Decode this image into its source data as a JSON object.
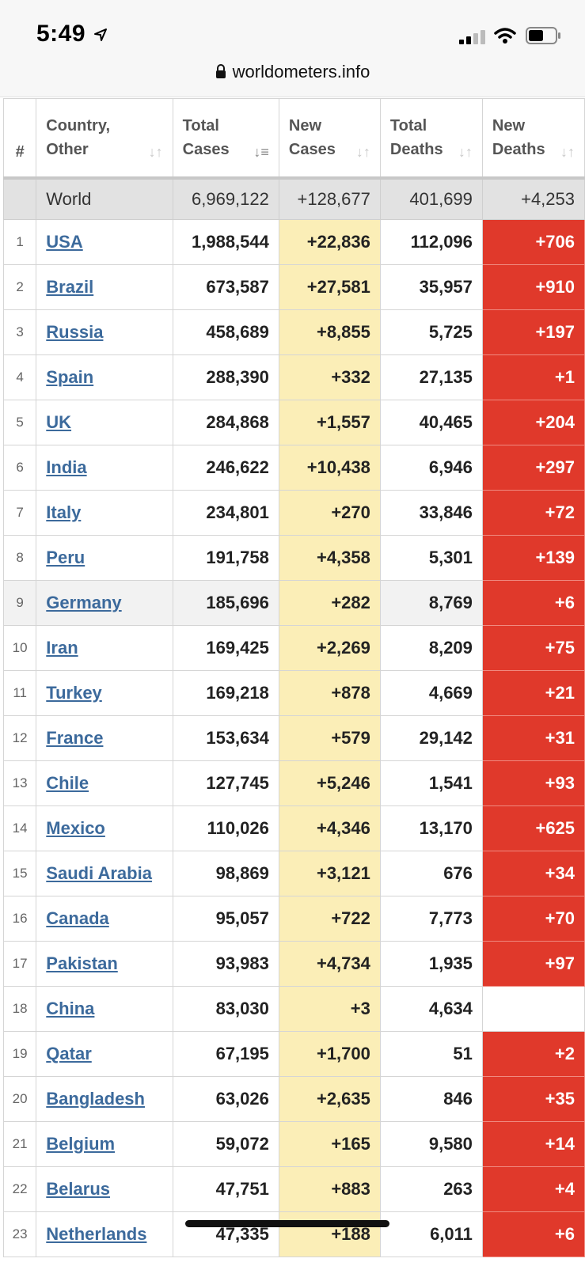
{
  "status_bar": {
    "time": "5:49",
    "icons": [
      "location-arrow-icon",
      "cellular-signal-icon",
      "wifi-icon",
      "battery-icon"
    ]
  },
  "browser": {
    "url": "worldometers.info",
    "lock_icon": "lock-icon"
  },
  "table": {
    "headers": {
      "rank": "#",
      "country_line1": "Country,",
      "country_line2": "Other",
      "total_cases_line1": "Total",
      "total_cases_line2": "Cases",
      "new_cases_line1": "New",
      "new_cases_line2": "Cases",
      "total_deaths_line1": "Total",
      "total_deaths_line2": "Deaths",
      "new_deaths_line1": "New",
      "new_deaths_line2": "Deaths"
    },
    "world": {
      "country": "World",
      "total_cases": "6,969,122",
      "new_cases": "+128,677",
      "total_deaths": "401,699",
      "new_deaths": "+4,253"
    },
    "rows": [
      {
        "rank": "1",
        "country": "USA",
        "total_cases": "1,988,544",
        "new_cases": "+22,836",
        "total_deaths": "112,096",
        "new_deaths": "+706"
      },
      {
        "rank": "2",
        "country": "Brazil",
        "total_cases": "673,587",
        "new_cases": "+27,581",
        "total_deaths": "35,957",
        "new_deaths": "+910"
      },
      {
        "rank": "3",
        "country": "Russia",
        "total_cases": "458,689",
        "new_cases": "+8,855",
        "total_deaths": "5,725",
        "new_deaths": "+197"
      },
      {
        "rank": "4",
        "country": "Spain",
        "total_cases": "288,390",
        "new_cases": "+332",
        "total_deaths": "27,135",
        "new_deaths": "+1"
      },
      {
        "rank": "5",
        "country": "UK",
        "total_cases": "284,868",
        "new_cases": "+1,557",
        "total_deaths": "40,465",
        "new_deaths": "+204"
      },
      {
        "rank": "6",
        "country": "India",
        "total_cases": "246,622",
        "new_cases": "+10,438",
        "total_deaths": "6,946",
        "new_deaths": "+297"
      },
      {
        "rank": "7",
        "country": "Italy",
        "total_cases": "234,801",
        "new_cases": "+270",
        "total_deaths": "33,846",
        "new_deaths": "+72"
      },
      {
        "rank": "8",
        "country": "Peru",
        "total_cases": "191,758",
        "new_cases": "+4,358",
        "total_deaths": "5,301",
        "new_deaths": "+139"
      },
      {
        "rank": "9",
        "country": "Germany",
        "total_cases": "185,696",
        "new_cases": "+282",
        "total_deaths": "8,769",
        "new_deaths": "+6",
        "highlight": true
      },
      {
        "rank": "10",
        "country": "Iran",
        "total_cases": "169,425",
        "new_cases": "+2,269",
        "total_deaths": "8,209",
        "new_deaths": "+75"
      },
      {
        "rank": "11",
        "country": "Turkey",
        "total_cases": "169,218",
        "new_cases": "+878",
        "total_deaths": "4,669",
        "new_deaths": "+21"
      },
      {
        "rank": "12",
        "country": "France",
        "total_cases": "153,634",
        "new_cases": "+579",
        "total_deaths": "29,142",
        "new_deaths": "+31"
      },
      {
        "rank": "13",
        "country": "Chile",
        "total_cases": "127,745",
        "new_cases": "+5,246",
        "total_deaths": "1,541",
        "new_deaths": "+93"
      },
      {
        "rank": "14",
        "country": "Mexico",
        "total_cases": "110,026",
        "new_cases": "+4,346",
        "total_deaths": "13,170",
        "new_deaths": "+625"
      },
      {
        "rank": "15",
        "country": "Saudi Arabia",
        "total_cases": "98,869",
        "new_cases": "+3,121",
        "total_deaths": "676",
        "new_deaths": "+34"
      },
      {
        "rank": "16",
        "country": "Canada",
        "total_cases": "95,057",
        "new_cases": "+722",
        "total_deaths": "7,773",
        "new_deaths": "+70"
      },
      {
        "rank": "17",
        "country": "Pakistan",
        "total_cases": "93,983",
        "new_cases": "+4,734",
        "total_deaths": "1,935",
        "new_deaths": "+97"
      },
      {
        "rank": "18",
        "country": "China",
        "total_cases": "83,030",
        "new_cases": "+3",
        "total_deaths": "4,634",
        "new_deaths": ""
      },
      {
        "rank": "19",
        "country": "Qatar",
        "total_cases": "67,195",
        "new_cases": "+1,700",
        "total_deaths": "51",
        "new_deaths": "+2"
      },
      {
        "rank": "20",
        "country": "Bangladesh",
        "total_cases": "63,026",
        "new_cases": "+2,635",
        "total_deaths": "846",
        "new_deaths": "+35"
      },
      {
        "rank": "21",
        "country": "Belgium",
        "total_cases": "59,072",
        "new_cases": "+165",
        "total_deaths": "9,580",
        "new_deaths": "+14"
      },
      {
        "rank": "22",
        "country": "Belarus",
        "total_cases": "47,751",
        "new_cases": "+883",
        "total_deaths": "263",
        "new_deaths": "+4"
      },
      {
        "rank": "23",
        "country": "Netherlands",
        "total_cases": "47,335",
        "new_cases": "+188",
        "total_deaths": "6,011",
        "new_deaths": "+6"
      }
    ]
  },
  "colors": {
    "link": "#3c6a9c",
    "new_cases_bg": "#fbeeb7",
    "new_deaths_bg": "#e0392b",
    "world_row_bg": "#e2e2e2"
  }
}
